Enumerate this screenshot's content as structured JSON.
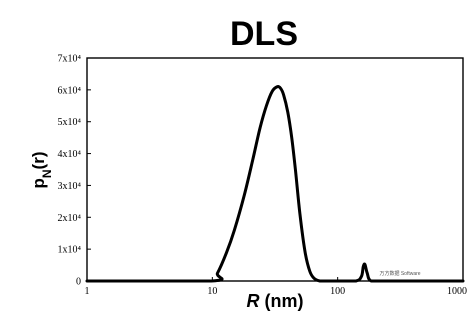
{
  "chart_data": {
    "type": "line",
    "title": "DLS",
    "xlabel_italic": "R",
    "xlabel_unit": " (nm)",
    "ylabel_main": "p",
    "ylabel_sub": "N",
    "ylabel_arg": "(r)",
    "x_scale": "log",
    "xlim": [
      1,
      1000
    ],
    "ylim": [
      0,
      70000
    ],
    "x_ticks": [
      1,
      10,
      100,
      1000
    ],
    "x_tick_labels": [
      "1",
      "10",
      "100",
      "1000"
    ],
    "y_ticks": [
      0,
      10000,
      20000,
      30000,
      40000,
      50000,
      60000,
      70000
    ],
    "y_tick_labels": [
      "0",
      "1x10⁴",
      "2x10⁴",
      "3x10⁴",
      "4x10⁴",
      "5x10⁴",
      "6x10⁴",
      "7x10⁴"
    ],
    "grid": false,
    "legend": "none",
    "series_color": "#000000",
    "series": [
      {
        "x": [
          1,
          9.8,
          11,
          13,
          15,
          18,
          21,
          24,
          27,
          30,
          33,
          35,
          37,
          40,
          43,
          46,
          50,
          55,
          60,
          65,
          72,
          80,
          100,
          140,
          155,
          160,
          165,
          172,
          185,
          250,
          1000
        ],
        "y": [
          0,
          0,
          2500,
          9000,
          16000,
          27000,
          38000,
          48000,
          55000,
          59500,
          61000,
          60500,
          58500,
          53000,
          45000,
          35000,
          21000,
          9000,
          3000,
          800,
          0,
          0,
          0,
          0,
          1500,
          4500,
          5200,
          2500,
          0,
          0,
          0
        ]
      }
    ]
  },
  "watermark": "万方数据 Software"
}
